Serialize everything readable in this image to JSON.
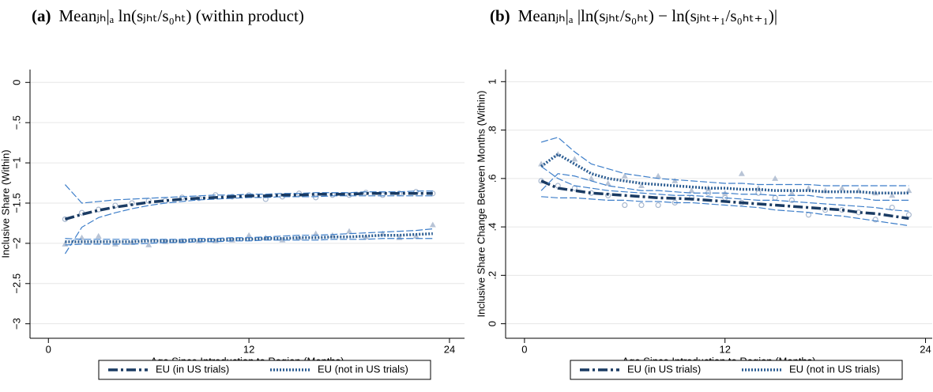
{
  "chart_data": [
    {
      "type": "line",
      "label": "(a)",
      "title": "Meanⱼₕ|ₐ ln(sⱼₕₜ/s₀ₕₜ) (within product)",
      "x_label": "Age Since Introduction to Region (Months)",
      "y_label": "Inclusive Share (Within)",
      "xlim": [
        -1.1,
        24.9
      ],
      "ylim": [
        -3.18,
        0.16
      ],
      "xticks": [
        0,
        12,
        24
      ],
      "yticks": [
        0,
        {
          "value": -0.5,
          "label": "−.5"
        },
        {
          "value": -1,
          "label": "−1"
        },
        {
          "value": -1.5,
          "label": "−1.5"
        },
        {
          "value": -2,
          "label": "−2"
        },
        {
          "value": -2.5,
          "label": "−2.5"
        },
        {
          "value": -3,
          "label": "−3"
        }
      ],
      "grid": true,
      "x": [
        1,
        2,
        3,
        4,
        5,
        6,
        7,
        8,
        9,
        10,
        11,
        12,
        13,
        14,
        15,
        16,
        17,
        18,
        19,
        20,
        21,
        22,
        23
      ],
      "series": [
        {
          "name": "EU (in US trials)",
          "color": "#1a3b63",
          "ci_color": "#3d7ec9",
          "marker": "circle",
          "marker_color": "#a8b8cf",
          "values": [
            -1.7,
            -1.64,
            -1.59,
            -1.55,
            -1.52,
            -1.49,
            -1.47,
            -1.45,
            -1.44,
            -1.43,
            -1.42,
            -1.41,
            -1.41,
            -1.4,
            -1.4,
            -1.39,
            -1.39,
            -1.39,
            -1.38,
            -1.38,
            -1.38,
            -1.38,
            -1.38
          ],
          "upper": [
            -1.27,
            -1.5,
            -1.48,
            -1.46,
            -1.45,
            -1.44,
            -1.43,
            -1.42,
            -1.41,
            -1.4,
            -1.4,
            -1.39,
            -1.39,
            -1.38,
            -1.38,
            -1.37,
            -1.37,
            -1.37,
            -1.36,
            -1.36,
            -1.36,
            -1.35,
            -1.35
          ],
          "lower": [
            -2.13,
            -1.8,
            -1.68,
            -1.62,
            -1.57,
            -1.53,
            -1.5,
            -1.48,
            -1.46,
            -1.45,
            -1.44,
            -1.43,
            -1.43,
            -1.42,
            -1.42,
            -1.42,
            -1.41,
            -1.41,
            -1.41,
            -1.41,
            -1.41,
            -1.41,
            -1.41
          ],
          "points": [
            -1.7,
            -1.62,
            -1.58,
            -1.53,
            -1.5,
            -1.47,
            -1.47,
            -1.43,
            -1.44,
            -1.4,
            -1.42,
            -1.4,
            -1.45,
            -1.42,
            -1.38,
            -1.43,
            -1.4,
            -1.4,
            -1.37,
            -1.4,
            -1.38,
            -1.36,
            -1.38
          ]
        },
        {
          "name": "EU (not in US trials)",
          "color": "#2c5d92",
          "ci_color": "#3d7ec9",
          "marker": "triangle",
          "marker_color": "#b8c4d6",
          "values": [
            -1.98,
            -1.98,
            -1.98,
            -1.98,
            -1.98,
            -1.97,
            -1.97,
            -1.97,
            -1.96,
            -1.96,
            -1.95,
            -1.95,
            -1.94,
            -1.94,
            -1.93,
            -1.93,
            -1.92,
            -1.92,
            -1.91,
            -1.9,
            -1.9,
            -1.89,
            -1.88
          ],
          "upper": [
            -1.94,
            -1.95,
            -1.95,
            -1.95,
            -1.95,
            -1.95,
            -1.95,
            -1.95,
            -1.94,
            -1.94,
            -1.93,
            -1.93,
            -1.92,
            -1.91,
            -1.9,
            -1.9,
            -1.89,
            -1.88,
            -1.87,
            -1.86,
            -1.85,
            -1.84,
            -1.82
          ],
          "lower": [
            -2.02,
            -2.01,
            -2.01,
            -2.01,
            -2.01,
            -2.0,
            -1.99,
            -1.99,
            -1.98,
            -1.98,
            -1.97,
            -1.97,
            -1.96,
            -1.96,
            -1.96,
            -1.96,
            -1.95,
            -1.95,
            -1.95,
            -1.94,
            -1.94,
            -1.94,
            -1.94
          ],
          "points": [
            -2.01,
            -1.93,
            -1.91,
            -2.01,
            -1.99,
            -2.02,
            -1.98,
            -1.97,
            -1.97,
            -1.97,
            -1.96,
            -1.9,
            -1.93,
            -1.96,
            -1.93,
            -1.88,
            -1.9,
            -1.85,
            -1.92,
            -1.88,
            -1.93,
            -1.91,
            -1.77
          ]
        }
      ]
    },
    {
      "type": "line",
      "label": "(b)",
      "title": "Meanⱼₕ|ₐ |ln(sⱼₕₜ/s₀ₕₜ) − ln(sⱼₕₜ₊₁/s₀ₕₜ₊₁)|",
      "x_label": "Age Since Introduction to Region (Months)",
      "y_label": "Inclusive Share Change Between Months (Within)",
      "xlim": [
        -1.13,
        24.4
      ],
      "ylim": [
        -0.06,
        1.05
      ],
      "xticks": [
        0,
        12,
        24
      ],
      "yticks": [
        0,
        {
          "value": 0.2,
          "label": ".2"
        },
        {
          "value": 0.4,
          "label": ".4"
        },
        {
          "value": 0.6,
          "label": ".6"
        },
        {
          "value": 0.8,
          "label": ".8"
        },
        1
      ],
      "grid": true,
      "x": [
        1,
        2,
        3,
        4,
        5,
        6,
        7,
        8,
        9,
        10,
        11,
        12,
        13,
        14,
        15,
        16,
        17,
        18,
        19,
        20,
        21,
        22,
        23
      ],
      "series": [
        {
          "name": "EU (in US trials)",
          "color": "#1a3b63",
          "ci_color": "#3d7ec9",
          "marker": "circle",
          "marker_color": "#a8b8cf",
          "values": [
            0.59,
            0.56,
            0.55,
            0.54,
            0.535,
            0.53,
            0.525,
            0.52,
            0.518,
            0.515,
            0.51,
            0.505,
            0.5,
            0.495,
            0.49,
            0.485,
            0.48,
            0.475,
            0.47,
            0.46,
            0.455,
            0.445,
            0.435
          ],
          "upper": [
            0.65,
            0.6,
            0.57,
            0.56,
            0.55,
            0.545,
            0.54,
            0.535,
            0.53,
            0.53,
            0.525,
            0.52,
            0.515,
            0.51,
            0.51,
            0.505,
            0.5,
            0.495,
            0.49,
            0.485,
            0.48,
            0.47,
            0.465
          ],
          "lower": [
            0.525,
            0.52,
            0.52,
            0.515,
            0.51,
            0.51,
            0.505,
            0.505,
            0.5,
            0.5,
            0.495,
            0.49,
            0.485,
            0.48,
            0.47,
            0.465,
            0.46,
            0.45,
            0.445,
            0.435,
            0.425,
            0.415,
            0.405
          ],
          "points": [
            0.59,
            0.57,
            0.56,
            0.54,
            0.53,
            0.49,
            0.49,
            0.49,
            0.5,
            0.52,
            0.54,
            0.52,
            0.5,
            0.54,
            0.52,
            0.51,
            0.45,
            0.47,
            0.47,
            0.46,
            0.43,
            0.48,
            0.45
          ]
        },
        {
          "name": "EU (not in US trials)",
          "color": "#2c5d92",
          "ci_color": "#3d7ec9",
          "marker": "triangle",
          "marker_color": "#b8c4d6",
          "values": [
            0.65,
            0.7,
            0.66,
            0.62,
            0.6,
            0.59,
            0.58,
            0.575,
            0.57,
            0.565,
            0.56,
            0.56,
            0.555,
            0.555,
            0.55,
            0.55,
            0.55,
            0.545,
            0.545,
            0.545,
            0.54,
            0.54,
            0.54
          ],
          "upper": [
            0.75,
            0.77,
            0.71,
            0.66,
            0.64,
            0.62,
            0.61,
            0.6,
            0.595,
            0.59,
            0.585,
            0.58,
            0.58,
            0.575,
            0.575,
            0.575,
            0.575,
            0.57,
            0.57,
            0.57,
            0.57,
            0.57,
            0.57
          ],
          "lower": [
            0.55,
            0.62,
            0.61,
            0.59,
            0.57,
            0.56,
            0.55,
            0.55,
            0.545,
            0.54,
            0.54,
            0.54,
            0.535,
            0.535,
            0.53,
            0.53,
            0.53,
            0.52,
            0.52,
            0.52,
            0.51,
            0.51,
            0.51
          ],
          "points": [
            0.66,
            0.7,
            0.68,
            0.6,
            0.58,
            0.61,
            0.57,
            0.61,
            0.59,
            0.55,
            0.56,
            0.54,
            0.62,
            0.56,
            0.6,
            0.54,
            0.56,
            0.55,
            0.56,
            0.55,
            0.54,
            0.53,
            0.55
          ]
        }
      ]
    }
  ]
}
